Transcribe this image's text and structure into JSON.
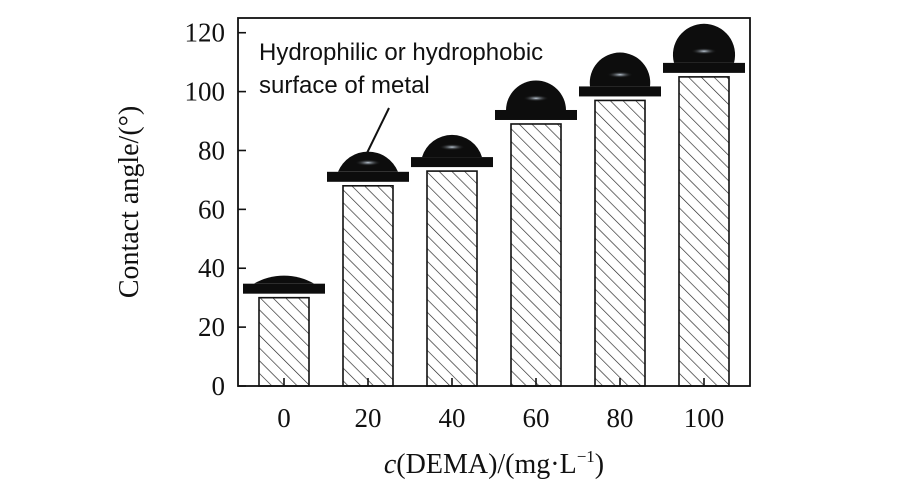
{
  "chart_data": {
    "type": "bar",
    "categories": [
      "0",
      "20",
      "40",
      "60",
      "80",
      "100"
    ],
    "values": [
      30,
      68,
      73,
      89,
      97,
      105
    ],
    "y_ticks": [
      "0",
      "20",
      "40",
      "60",
      "80",
      "100",
      "120"
    ],
    "ylim": [
      0,
      125
    ],
    "ylabel": "Contact angle/(°)",
    "xlabel": {
      "italic": "c",
      "text": "(DEMA)/(mg·L",
      "superscript": "−1",
      "close": ")"
    },
    "annotation": [
      "Hydrophilic or hydrophobic",
      "surface of metal"
    ],
    "grid": false,
    "bar_fill": "hatched",
    "colors": {
      "ink": "#111111",
      "droplet": "#0d0d0d",
      "droplet_highlight": "#9fb3c8"
    }
  }
}
